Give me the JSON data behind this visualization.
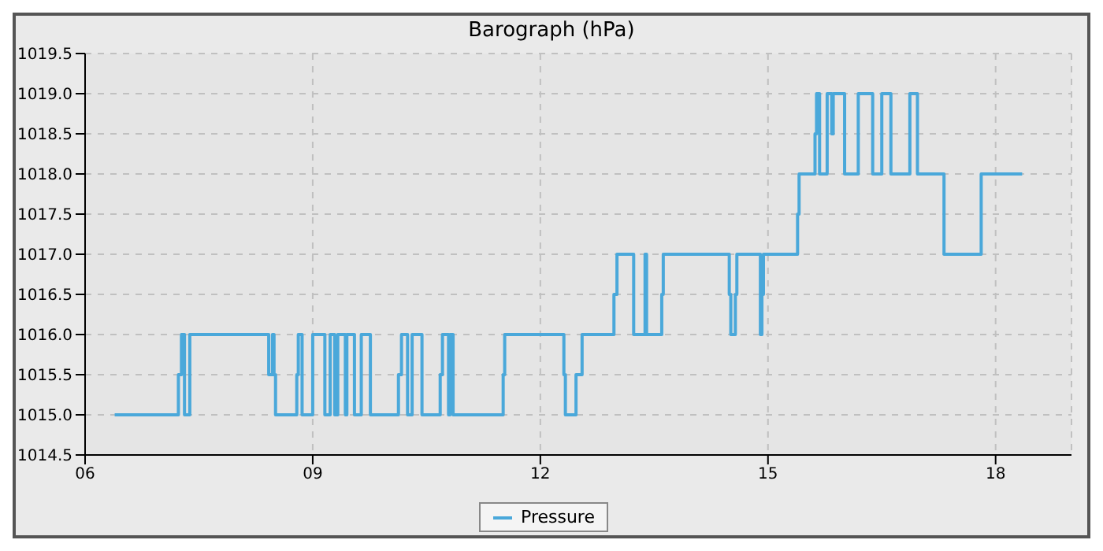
{
  "chart_data": {
    "type": "step",
    "title": "Barograph (hPa)",
    "x": [
      6.39,
      7.23,
      7.27,
      7.31,
      7.38,
      8.42,
      8.47,
      8.49,
      8.51,
      8.79,
      8.81,
      8.86,
      9.0,
      9.16,
      9.23,
      9.29,
      9.33,
      9.43,
      9.45,
      9.55,
      9.64,
      9.76,
      10.13,
      10.17,
      10.25,
      10.31,
      10.44,
      10.68,
      10.71,
      10.79,
      10.81,
      10.85,
      11.51,
      11.53,
      12.31,
      12.33,
      12.47,
      12.55,
      12.97,
      13.01,
      13.23,
      13.38,
      13.4,
      13.6,
      13.62,
      14.49,
      14.51,
      14.57,
      14.59,
      14.9,
      14.92,
      14.94,
      15.39,
      15.41,
      15.62,
      15.64,
      15.68,
      15.78,
      15.84,
      15.86,
      16.01,
      16.19,
      16.38,
      16.5,
      16.62,
      16.87,
      16.97,
      17.32,
      17.81,
      18.35
    ],
    "series": [
      {
        "name": "Pressure",
        "color": "#4aa8da",
        "values": [
          1015,
          1015.5,
          1016,
          1015,
          1016,
          1015.5,
          1016,
          1015.5,
          1015,
          1015.5,
          1016,
          1015,
          1016,
          1015,
          1016,
          1015,
          1016,
          1015,
          1016,
          1015,
          1016,
          1015,
          1015.5,
          1016,
          1015,
          1016,
          1015,
          1015.5,
          1016,
          1015,
          1016,
          1015,
          1015.5,
          1016,
          1015.5,
          1015,
          1015.5,
          1016,
          1016.5,
          1017,
          1016,
          1017,
          1016,
          1016.5,
          1017,
          1016.5,
          1016,
          1016.5,
          1017,
          1016,
          1016.5,
          1017,
          1017.5,
          1018,
          1018.5,
          1019,
          1018,
          1019,
          1018.5,
          1019,
          1018,
          1019,
          1018,
          1019,
          1018,
          1019,
          1018,
          1017,
          1018,
          1018
        ]
      }
    ],
    "xlim": [
      6,
      19
    ],
    "xticks": [
      {
        "value": 6,
        "label": "06"
      },
      {
        "value": 9,
        "label": "09"
      },
      12,
      15,
      18
    ],
    "ylim": [
      1014.5,
      1019.5
    ],
    "yticks": [
      1014.5,
      {
        "value": 1015,
        "label": "1015.0"
      },
      1015.5,
      {
        "value": 1016,
        "label": "1016.0"
      },
      1016.5,
      {
        "value": 1017,
        "label": "1017.0"
      },
      1017.5,
      {
        "value": 1018,
        "label": "1018.0"
      },
      1018.5,
      {
        "value": 1019,
        "label": "1019.0"
      },
      1019.5
    ],
    "grid": true,
    "legend": "bottom",
    "marker": "none",
    "line_style": "solid"
  }
}
